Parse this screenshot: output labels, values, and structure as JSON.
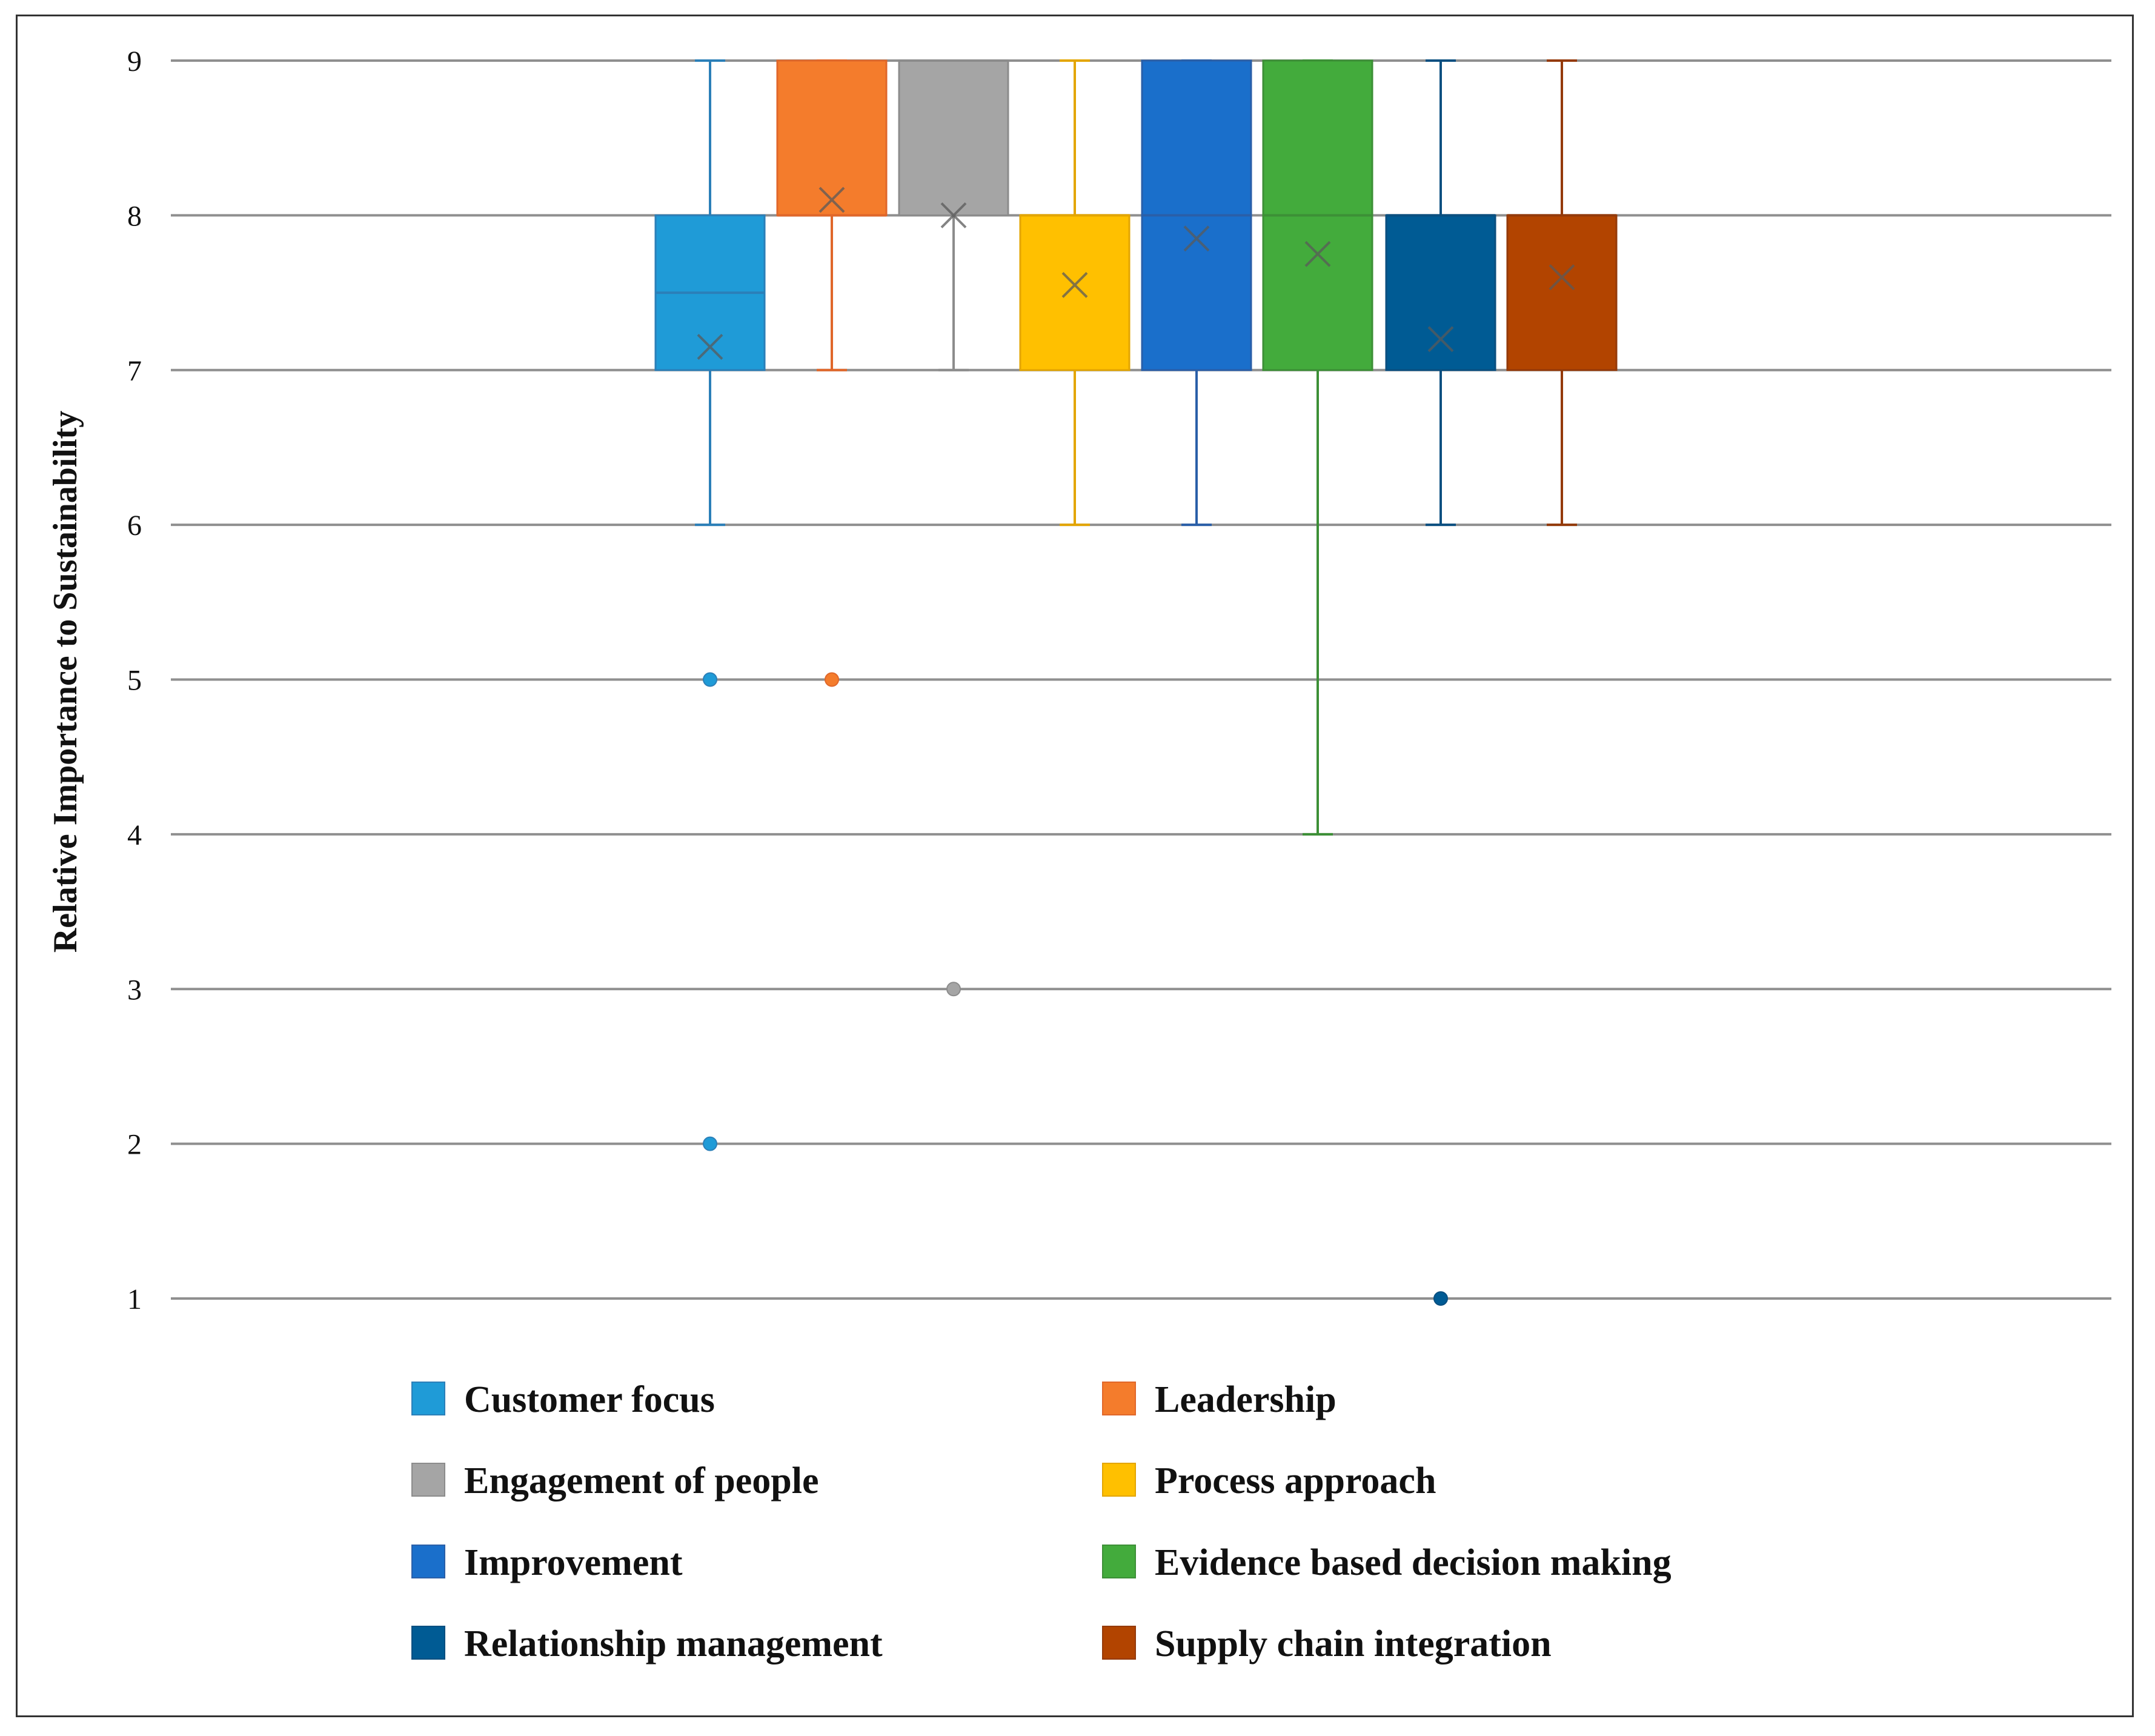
{
  "chart_data": {
    "type": "box",
    "title": "",
    "xlabel": "",
    "ylabel": "Relative Importance to Sustainability",
    "ylim": [
      1,
      9
    ],
    "yticks": [
      "1",
      "2",
      "3",
      "4",
      "5",
      "6",
      "7",
      "8",
      "9"
    ],
    "grid": true,
    "legend_position": "bottom",
    "series": [
      {
        "name": "Customer focus",
        "color": "#1f9bd7",
        "edge": "#2b7fb8",
        "min": 6,
        "q1": 7,
        "median": 7.5,
        "q3": 8,
        "max": 9,
        "mean": 7.15,
        "outliers": [
          5,
          2
        ]
      },
      {
        "name": "Leadership",
        "color": "#f47c2c",
        "edge": "#e0672a",
        "min": 7,
        "q1": 8,
        "median": 8,
        "q3": 9,
        "max": 9,
        "mean": 8.1,
        "outliers": [
          5
        ]
      },
      {
        "name": "Engagement of people",
        "color": "#a5a5a5",
        "edge": "#8c8c8c",
        "min": 7,
        "q1": 8,
        "median": 9,
        "q3": 9,
        "max": 9,
        "mean": 8.0,
        "outliers": [
          3
        ]
      },
      {
        "name": "Process approach",
        "color": "#ffc000",
        "edge": "#e3a500",
        "min": 6,
        "q1": 7,
        "median": 8,
        "q3": 8,
        "max": 9,
        "mean": 7.55,
        "outliers": []
      },
      {
        "name": "Improvement",
        "color": "#1a6fcb",
        "edge": "#2a5fa8",
        "min": 6,
        "q1": 7,
        "median": 8,
        "q3": 9,
        "max": 9,
        "mean": 7.85,
        "outliers": []
      },
      {
        "name": "Evidence based decision making",
        "color": "#43ab3c",
        "edge": "#3c8f36",
        "min": 4,
        "q1": 7,
        "median": 8,
        "q3": 9,
        "max": 9,
        "mean": 7.75,
        "outliers": []
      },
      {
        "name": "Relationship management",
        "color": "#005b94",
        "edge": "#0a4f80",
        "min": 6,
        "q1": 7,
        "median": 8,
        "q3": 8,
        "max": 9,
        "mean": 7.2,
        "outliers": [
          1
        ]
      },
      {
        "name": "Supply chain integration",
        "color": "#b24400",
        "edge": "#943a0a",
        "min": 6,
        "q1": 7,
        "median": 8,
        "q3": 8,
        "max": 9,
        "mean": 7.6,
        "outliers": []
      }
    ]
  }
}
